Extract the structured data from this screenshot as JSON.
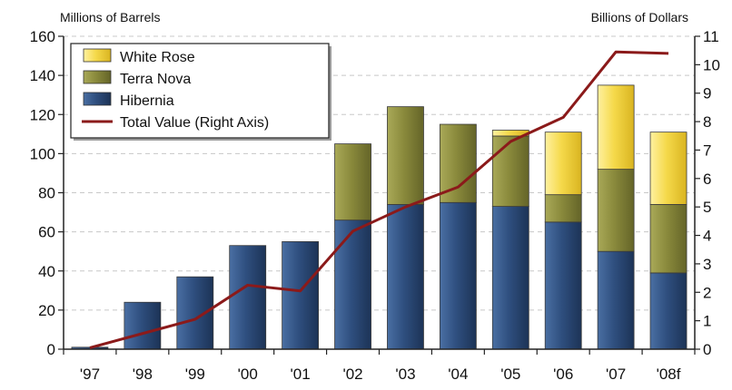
{
  "chart_data": {
    "type": "bar",
    "categories": [
      "'97",
      "'98",
      "'99",
      "'00",
      "'01",
      "'02",
      "'03",
      "'04",
      "'05",
      "'06",
      "'07",
      "'08f"
    ],
    "left_axis_label": "Millions of Barrels",
    "right_axis_label": "Billions of Dollars",
    "ylim_left": [
      0,
      160
    ],
    "yticks_left": [
      0,
      20,
      40,
      60,
      80,
      100,
      120,
      140,
      160
    ],
    "ylim_right": [
      0,
      11
    ],
    "yticks_right": [
      0,
      1,
      2,
      3,
      4,
      5,
      6,
      7,
      8,
      9,
      10,
      11
    ],
    "grid": "horizontal dashed",
    "legend_placement": "top-left",
    "series": [
      {
        "name": "Hibernia",
        "kind": "bar",
        "axis": "left",
        "color": "#2f4f7f",
        "values": [
          1,
          24,
          37,
          53,
          55,
          66,
          74,
          75,
          73,
          65,
          50,
          39
        ]
      },
      {
        "name": "Terra Nova",
        "kind": "bar",
        "axis": "left",
        "color": "#8a8a3c",
        "values": [
          0,
          0,
          0,
          0,
          0,
          39,
          50,
          40,
          36,
          14,
          42,
          35
        ]
      },
      {
        "name": "White Rose",
        "kind": "bar",
        "axis": "left",
        "color": "#f5d94a",
        "values": [
          0,
          0,
          0,
          0,
          0,
          0,
          0,
          0,
          3,
          32,
          43,
          37
        ]
      },
      {
        "name": "Total Value (Right Axis)",
        "kind": "line",
        "axis": "right",
        "color": "#8b1a1a",
        "values": [
          0.05,
          0.55,
          1.05,
          2.25,
          2.05,
          4.15,
          5.0,
          5.7,
          7.3,
          8.15,
          10.45,
          10.4
        ]
      }
    ]
  }
}
